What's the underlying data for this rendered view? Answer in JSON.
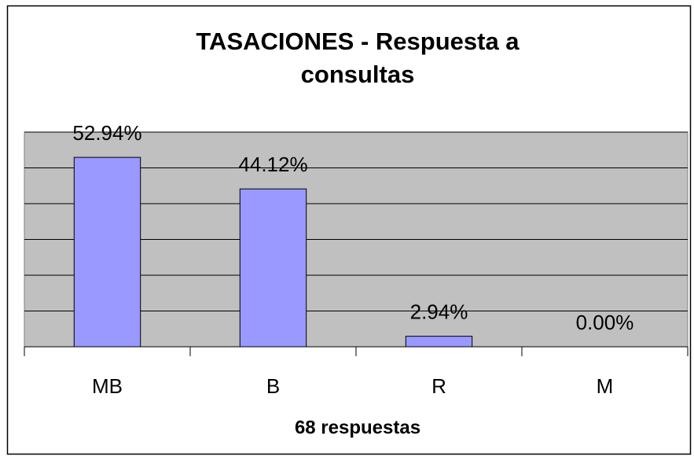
{
  "chart_data": {
    "type": "bar",
    "title": "TASACIONES - Respuesta a consultas",
    "categories": [
      "MB",
      "B",
      "R",
      "M"
    ],
    "values": [
      52.94,
      44.12,
      2.94,
      0
    ],
    "value_labels": [
      "52.94%",
      "44.12%",
      "2.94%",
      "0.00%"
    ],
    "color": "#9999ff",
    "x_label": "68 respuestas",
    "ylim": [
      0,
      60
    ],
    "yticks": [
      0,
      10,
      20,
      30,
      40,
      50,
      60
    ],
    "grid": true
  }
}
